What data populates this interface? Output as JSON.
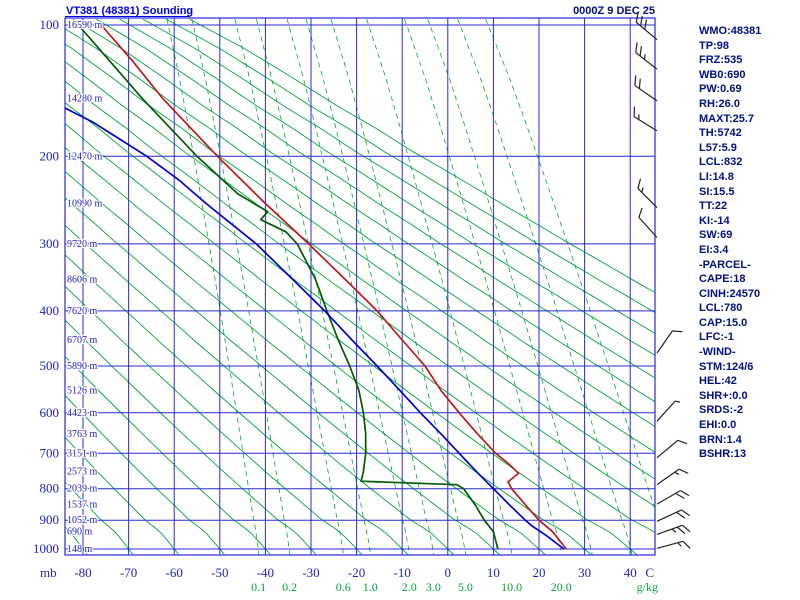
{
  "header": {
    "title": "VT381 (48381) Sounding",
    "datetime": "0000Z  9 DEC 25"
  },
  "axes": {
    "pressure_unit": "mb",
    "temp_unit": "C",
    "mixratio_unit": "g/kg",
    "pressure_ticks": [
      100,
      200,
      300,
      400,
      500,
      600,
      700,
      800,
      900,
      1000
    ],
    "temp_ticks": [
      -80,
      -70,
      -60,
      -50,
      -40,
      -30,
      -20,
      -10,
      0,
      10,
      20,
      30,
      40
    ]
  },
  "stats": {
    "lines": [
      "WMO:48381",
      "TP:98",
      "FRZ:535",
      "WB0:690",
      "PW:0.69",
      "RH:26.0",
      "MAXT:25.7",
      "TH:5742",
      "L57:5.9",
      "LCL:832",
      "LI:14.8",
      "SI:15.5",
      "TT:22",
      "KI:-14",
      "SW:69",
      "EI:3.4",
      "-PARCEL-",
      "CAPE:18",
      "CINH:24570",
      "LCL:780",
      "CAP:15.0",
      "LFC:-1",
      "-WIND-",
      "STM:124/6",
      "HEL:42",
      "SHR+:0.0",
      "SRDS:-2",
      "EHI:0.0",
      "BRN:1.4",
      "BSHR:13"
    ]
  },
  "colors": {
    "grid_blue": "#2929d6",
    "label_blue": "#2222bb",
    "green": "#00a43e",
    "temp_red": "#c01818",
    "dewpoint_green": "#005a00",
    "parcel_blue": "#0000c8",
    "navy": "#001080",
    "title_blue": "#0000e0",
    "barb": "#222222"
  },
  "chart_data": {
    "type": "line",
    "subtype": "thermodynamic_sounding",
    "title": "VT381 (48381) Sounding",
    "x_axis": {
      "label": "C",
      "range": [
        -84,
        45.5
      ],
      "grid": true
    },
    "y_axis": {
      "label": "mb",
      "range": [
        1000,
        100
      ],
      "scale": "linear-height",
      "grid": true
    },
    "levels_mb": [
      100,
      150,
      200,
      250,
      300,
      350,
      400,
      450,
      500,
      550,
      600,
      650,
      700,
      750,
      800,
      850,
      900,
      950,
      1000
    ],
    "heights_m": [
      16590,
      14280,
      12470,
      10990,
      9720,
      8606,
      7620,
      6707,
      5890,
      5126,
      4423,
      3763,
      3151,
      2573,
      2039,
      1537,
      1052,
      690,
      148
    ],
    "height_label_suffix": " m",
    "isotherm_step_c": 10,
    "dry_adiabats_theta_c": [
      -80,
      -70,
      -60,
      -50,
      -40,
      -30,
      -20,
      -10,
      0,
      10,
      20,
      30,
      40,
      50,
      60,
      70,
      80,
      90,
      100,
      110,
      120,
      130,
      140,
      150
    ],
    "mixing_ratio_lines_gkg": [
      0.1,
      0.2,
      0.6,
      1,
      2,
      3,
      5,
      10,
      20,
      30,
      50,
      80
    ],
    "mixing_ratio_labels": [
      "0.1",
      "0.2",
      "0.6",
      "1.0",
      "2.0",
      "3.0",
      "5.0",
      "10.0",
      "20.0"
    ],
    "series": [
      {
        "name": "temperature",
        "color": "#c01818",
        "points": [
          [
            1000,
            26
          ],
          [
            950,
            23
          ],
          [
            900,
            20
          ],
          [
            850,
            17
          ],
          [
            800,
            14
          ],
          [
            780,
            13.2
          ],
          [
            755,
            15.5
          ],
          [
            730,
            13.5
          ],
          [
            700,
            10.5
          ],
          [
            650,
            6.5
          ],
          [
            600,
            2.5
          ],
          [
            550,
            -1.5
          ],
          [
            500,
            -5
          ],
          [
            450,
            -10
          ],
          [
            400,
            -15.5
          ],
          [
            350,
            -22.5
          ],
          [
            300,
            -30.5
          ],
          [
            250,
            -40
          ],
          [
            200,
            -50.5
          ],
          [
            150,
            -62.5
          ],
          [
            125,
            -69
          ],
          [
            100,
            -76
          ]
        ]
      },
      {
        "name": "dewpoint",
        "color": "#005a00",
        "points": [
          [
            1000,
            11
          ],
          [
            950,
            10
          ],
          [
            900,
            8
          ],
          [
            850,
            6
          ],
          [
            800,
            3.5
          ],
          [
            788,
            2
          ],
          [
            778,
            -19
          ],
          [
            750,
            -18.5
          ],
          [
            700,
            -18
          ],
          [
            650,
            -18
          ],
          [
            600,
            -18.5
          ],
          [
            550,
            -19.5
          ],
          [
            500,
            -21.5
          ],
          [
            450,
            -24
          ],
          [
            400,
            -26.5
          ],
          [
            350,
            -29
          ],
          [
            300,
            -33
          ],
          [
            285,
            -35.5
          ],
          [
            270,
            -41
          ],
          [
            260,
            -39.5
          ],
          [
            240,
            -46
          ],
          [
            200,
            -55
          ],
          [
            150,
            -67
          ],
          [
            125,
            -74
          ],
          [
            100,
            -81
          ]
        ]
      },
      {
        "name": "parcel",
        "color": "#0000c8",
        "points": [
          [
            1000,
            25.5
          ],
          [
            960,
            21.5
          ],
          [
            925,
            18.5
          ],
          [
            900,
            17
          ],
          [
            850,
            13.5
          ],
          [
            800,
            10
          ],
          [
            750,
            6.3
          ],
          [
            700,
            2.5
          ],
          [
            650,
            -1.5
          ],
          [
            600,
            -6
          ],
          [
            550,
            -10.5
          ],
          [
            500,
            -15.5
          ],
          [
            450,
            -21
          ],
          [
            400,
            -27
          ],
          [
            350,
            -34
          ],
          [
            300,
            -42
          ],
          [
            250,
            -53
          ],
          [
            225,
            -59
          ],
          [
            200,
            -66
          ],
          [
            185,
            -72
          ],
          [
            170,
            -78
          ],
          [
            160,
            -83
          ],
          [
            150,
            -88
          ]
        ]
      }
    ],
    "winds": [
      {
        "p": 110,
        "angle": 140,
        "full": 3,
        "half": 0
      },
      {
        "p": 130,
        "angle": 142,
        "full": 2,
        "half": 1
      },
      {
        "p": 152,
        "angle": 145,
        "full": 2,
        "half": 0
      },
      {
        "p": 178,
        "angle": 148,
        "full": 1,
        "half": 1
      },
      {
        "p": 255,
        "angle": 135,
        "full": 1,
        "half": 1
      },
      {
        "p": 292,
        "angle": 132,
        "full": 1,
        "half": 0
      },
      {
        "p": 475,
        "angle": 55,
        "full": 1,
        "half": 0
      },
      {
        "p": 620,
        "angle": 48,
        "full": 0,
        "half": 1
      },
      {
        "p": 712,
        "angle": 40,
        "full": 1,
        "half": 0
      },
      {
        "p": 788,
        "angle": 35,
        "full": 1,
        "half": 1
      },
      {
        "p": 848,
        "angle": 30,
        "full": 2,
        "half": 0
      },
      {
        "p": 905,
        "angle": 25,
        "full": 2,
        "half": 0
      },
      {
        "p": 958,
        "angle": 20,
        "full": 2,
        "half": 1
      },
      {
        "p": 998,
        "angle": 15,
        "full": 1,
        "half": 1
      }
    ]
  }
}
